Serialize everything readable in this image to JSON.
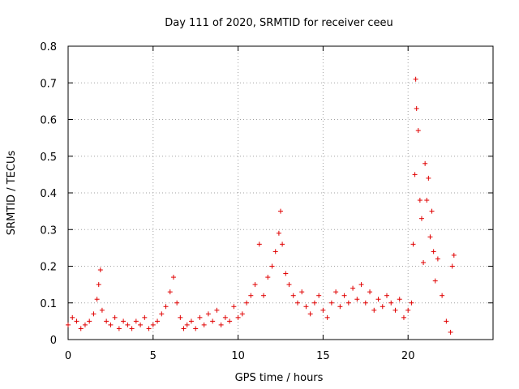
{
  "chart_data": {
    "type": "scatter",
    "title": "Day 111 of 2020, SRMTID for receiver ceeu",
    "xlabel": "GPS time / hours",
    "ylabel": "SRMTID / TECUs",
    "xlim": [
      0,
      25
    ],
    "ylim": [
      0,
      0.8
    ],
    "xticks": [
      0,
      5,
      10,
      15,
      20
    ],
    "xtick_labels": [
      "0",
      "5",
      "10",
      "15",
      "20"
    ],
    "yticks": [
      0,
      0.1,
      0.2,
      0.3,
      0.4,
      0.5,
      0.6,
      0.7,
      0.8
    ],
    "ytick_labels": [
      "0",
      "0.1",
      "0.2",
      "0.3",
      "0.4",
      "0.5",
      "0.6",
      "0.7",
      "0.8"
    ],
    "grid": true,
    "marker": "+",
    "color": "#e00000",
    "series": [
      {
        "name": "SRMTID",
        "x": [
          0.0,
          0.25,
          0.5,
          0.75,
          1.0,
          1.25,
          1.5,
          1.7,
          1.8,
          1.9,
          2.0,
          2.25,
          2.5,
          2.75,
          3.0,
          3.25,
          3.5,
          3.75,
          4.0,
          4.25,
          4.5,
          4.75,
          5.0,
          5.25,
          5.5,
          5.75,
          6.0,
          6.2,
          6.4,
          6.6,
          6.8,
          7.0,
          7.25,
          7.5,
          7.75,
          8.0,
          8.25,
          8.5,
          8.75,
          9.0,
          9.25,
          9.5,
          9.75,
          10.0,
          10.25,
          10.5,
          10.75,
          11.0,
          11.25,
          11.5,
          11.75,
          12.0,
          12.2,
          12.4,
          12.5,
          12.6,
          12.8,
          13.0,
          13.25,
          13.5,
          13.75,
          14.0,
          14.25,
          14.5,
          14.75,
          15.0,
          15.25,
          15.5,
          15.75,
          16.0,
          16.25,
          16.5,
          16.75,
          17.0,
          17.25,
          17.5,
          17.75,
          18.0,
          18.25,
          18.5,
          18.75,
          19.0,
          19.25,
          19.5,
          19.75,
          20.0,
          20.2,
          20.3,
          20.4,
          20.45,
          20.5,
          20.6,
          20.7,
          20.8,
          20.9,
          21.0,
          21.1,
          21.2,
          21.3,
          21.4,
          21.5,
          21.6,
          21.75,
          22.0,
          22.25,
          22.5,
          22.6,
          22.7
        ],
        "y": [
          0.04,
          0.06,
          0.05,
          0.03,
          0.04,
          0.05,
          0.07,
          0.11,
          0.15,
          0.19,
          0.08,
          0.05,
          0.04,
          0.06,
          0.03,
          0.05,
          0.04,
          0.03,
          0.05,
          0.04,
          0.06,
          0.03,
          0.04,
          0.05,
          0.07,
          0.09,
          0.13,
          0.17,
          0.1,
          0.06,
          0.03,
          0.04,
          0.05,
          0.03,
          0.06,
          0.04,
          0.07,
          0.05,
          0.08,
          0.04,
          0.06,
          0.05,
          0.09,
          0.06,
          0.07,
          0.1,
          0.12,
          0.15,
          0.26,
          0.12,
          0.17,
          0.2,
          0.24,
          0.29,
          0.35,
          0.26,
          0.18,
          0.15,
          0.12,
          0.1,
          0.13,
          0.09,
          0.07,
          0.1,
          0.12,
          0.08,
          0.06,
          0.1,
          0.13,
          0.09,
          0.12,
          0.1,
          0.14,
          0.11,
          0.15,
          0.1,
          0.13,
          0.08,
          0.11,
          0.09,
          0.12,
          0.1,
          0.08,
          0.11,
          0.06,
          0.08,
          0.1,
          0.26,
          0.45,
          0.71,
          0.63,
          0.57,
          0.38,
          0.33,
          0.21,
          0.48,
          0.38,
          0.44,
          0.28,
          0.35,
          0.24,
          0.16,
          0.22,
          0.12,
          0.05,
          0.02,
          0.2,
          0.23
        ]
      }
    ]
  }
}
